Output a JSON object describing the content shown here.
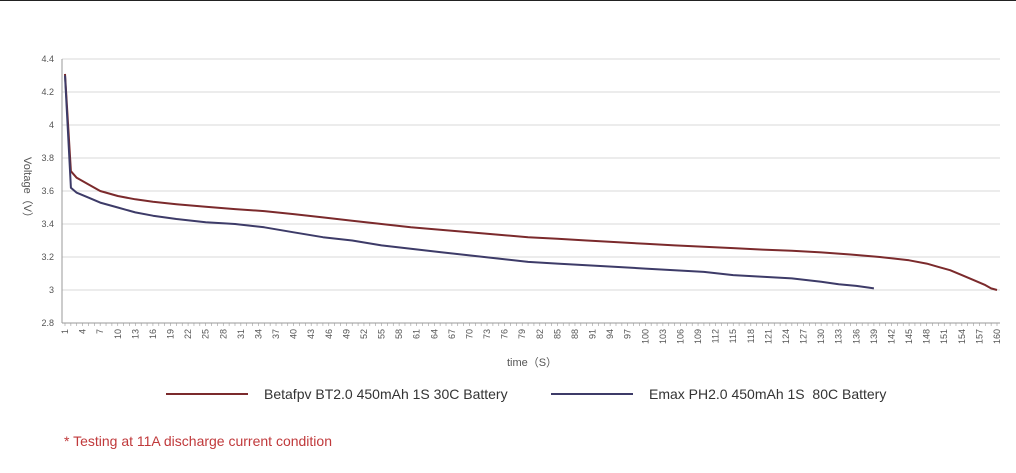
{
  "chart_data": {
    "type": "line",
    "title": "",
    "xlabel": "time（S）",
    "ylabel": "Voltage（V）",
    "xlim": [
      1,
      160
    ],
    "ylim": [
      2.8,
      4.4
    ],
    "y_ticks": [
      "2.8",
      "3",
      "3.2",
      "3.4",
      "3.6",
      "3.8",
      "4",
      "4.2",
      "4.4"
    ],
    "y_tick_values": [
      2.8,
      3.0,
      3.2,
      3.4,
      3.6,
      3.8,
      4.0,
      4.2,
      4.4
    ],
    "x_ticks": [
      "1",
      "4",
      "7",
      "10",
      "13",
      "16",
      "19",
      "22",
      "25",
      "28",
      "31",
      "34",
      "37",
      "40",
      "43",
      "46",
      "49",
      "52",
      "55",
      "58",
      "61",
      "64",
      "67",
      "70",
      "73",
      "76",
      "79",
      "82",
      "85",
      "88",
      "91",
      "94",
      "97",
      "100",
      "103",
      "106",
      "109",
      "112",
      "115",
      "118",
      "121",
      "124",
      "127",
      "130",
      "133",
      "136",
      "139",
      "142",
      "145",
      "148",
      "151",
      "154",
      "157",
      "160"
    ],
    "grid": "horizontal",
    "legend_position": "bottom",
    "series": [
      {
        "name": "Betafpv BT2.0 450mAh 1S 30C Battery",
        "color": "#7b2a2c",
        "x": [
          1,
          2,
          3,
          5,
          7,
          10,
          13,
          16,
          20,
          25,
          30,
          35,
          40,
          45,
          50,
          55,
          60,
          65,
          70,
          75,
          80,
          85,
          90,
          95,
          100,
          105,
          110,
          115,
          120,
          125,
          130,
          135,
          140,
          145,
          148,
          150,
          152,
          154,
          156,
          158,
          159,
          160
        ],
        "y": [
          4.31,
          3.72,
          3.68,
          3.64,
          3.6,
          3.57,
          3.55,
          3.535,
          3.52,
          3.505,
          3.49,
          3.478,
          3.46,
          3.44,
          3.42,
          3.4,
          3.38,
          3.365,
          3.35,
          3.335,
          3.32,
          3.31,
          3.3,
          3.29,
          3.28,
          3.27,
          3.262,
          3.254,
          3.245,
          3.238,
          3.228,
          3.215,
          3.2,
          3.18,
          3.16,
          3.14,
          3.12,
          3.09,
          3.06,
          3.03,
          3.01,
          3.0
        ]
      },
      {
        "name": "Emax PH2.0 450mAh 1S  80C Battery",
        "color": "#3d3b68",
        "x": [
          1,
          2,
          3,
          5,
          7,
          10,
          13,
          16,
          20,
          25,
          30,
          35,
          40,
          45,
          50,
          55,
          60,
          65,
          70,
          75,
          80,
          85,
          90,
          95,
          100,
          105,
          110,
          115,
          120,
          125,
          130,
          133,
          136,
          138,
          139
        ],
        "y": [
          4.3,
          3.62,
          3.59,
          3.56,
          3.53,
          3.5,
          3.47,
          3.45,
          3.43,
          3.41,
          3.4,
          3.38,
          3.35,
          3.32,
          3.3,
          3.27,
          3.25,
          3.23,
          3.21,
          3.19,
          3.17,
          3.16,
          3.15,
          3.14,
          3.13,
          3.12,
          3.11,
          3.09,
          3.08,
          3.07,
          3.05,
          3.035,
          3.025,
          3.015,
          3.01
        ]
      }
    ]
  },
  "footnote": "* Testing at 11A discharge current condition"
}
